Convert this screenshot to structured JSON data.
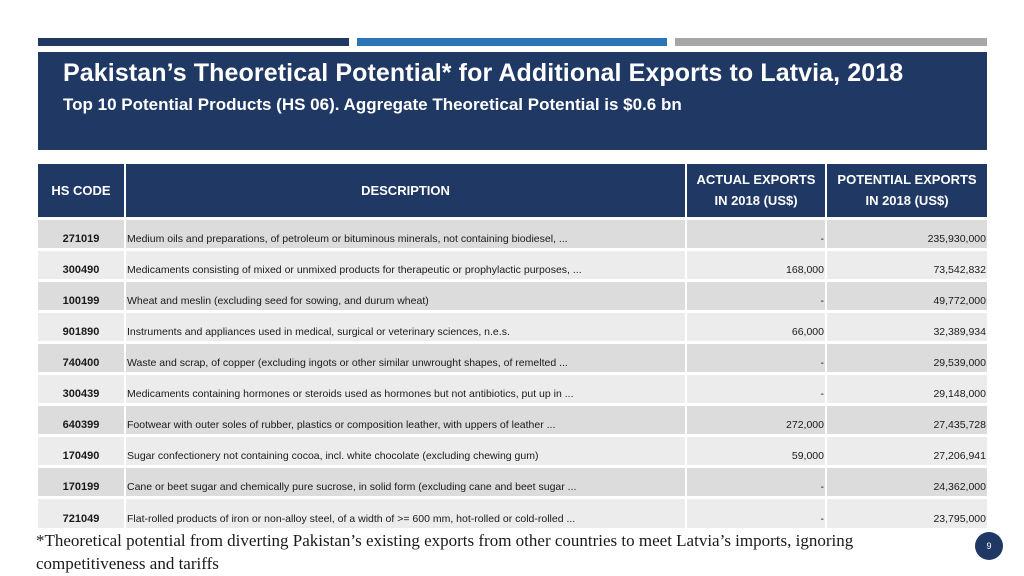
{
  "title": {
    "main": "Pakistan’s Theoretical Potential* for Additional Exports to Latvia, 2018",
    "sub": "Top 10 Potential Products (HS 06). Aggregate Theoretical Potential is $0.6 bn"
  },
  "colors": {
    "navy": "#1f3864",
    "blue": "#2e75b6",
    "gray": "#a6a6a6"
  },
  "table": {
    "headers": {
      "hs_code": "HS CODE",
      "description": "DESCRIPTION",
      "actual_line1": "ACTUAL EXPORTS",
      "actual_line2": "IN 2018 (US$)",
      "potential_line1": "POTENTIAL EXPORTS",
      "potential_line2": "IN 2018 (US$)"
    },
    "rows": [
      {
        "code": "271019",
        "desc": "Medium oils and preparations, of petroleum or bituminous minerals, not containing biodiesel, ...",
        "actual": "-",
        "potential": "235,930,000"
      },
      {
        "code": "300490",
        "desc": "Medicaments consisting of mixed or unmixed products for therapeutic or prophylactic purposes, ...",
        "actual": "168,000",
        "potential": "73,542,832"
      },
      {
        "code": "100199",
        "desc": "Wheat and meslin (excluding seed for sowing, and durum wheat)",
        "actual": "-",
        "potential": "49,772,000"
      },
      {
        "code": "901890",
        "desc": "Instruments and appliances used in medical, surgical or veterinary sciences, n.e.s.",
        "actual": "66,000",
        "potential": "32,389,934"
      },
      {
        "code": "740400",
        "desc": "Waste and scrap, of copper (excluding ingots or other similar unwrought shapes, of remelted ...",
        "actual": "-",
        "potential": "29,539,000"
      },
      {
        "code": "300439",
        "desc": "Medicaments containing hormones or steroids used as hormones but not antibiotics, put up in ...",
        "actual": "-",
        "potential": "29,148,000"
      },
      {
        "code": "640399",
        "desc": "Footwear with outer soles of rubber, plastics or composition leather, with uppers of leather ...",
        "actual": "272,000",
        "potential": "27,435,728"
      },
      {
        "code": "170490",
        "desc": "Sugar confectionery not containing cocoa, incl. white chocolate (excluding chewing gum)",
        "actual": "59,000",
        "potential": "27,206,941"
      },
      {
        "code": "170199",
        "desc": "Cane or beet sugar and chemically pure sucrose, in solid form (excluding cane and beet sugar ...",
        "actual": "-",
        "potential": "24,362,000"
      },
      {
        "code": "721049",
        "desc": "Flat-rolled products of iron or non-alloy steel, of a width of >= 600 mm, hot-rolled or cold-rolled ...",
        "actual": "-",
        "potential": "23,795,000"
      }
    ]
  },
  "footnote": "*Theoretical potential from diverting Pakistan’s existing exports from other countries to meet Latvia’s imports, ignoring competitiveness and tariffs",
  "page_number": "9"
}
